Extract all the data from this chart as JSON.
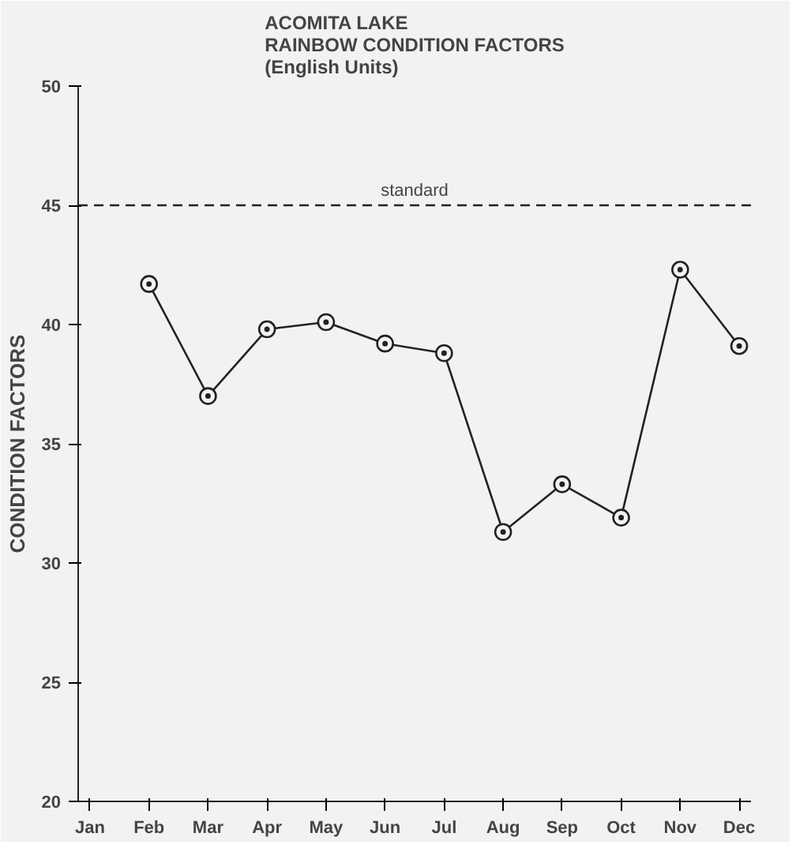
{
  "chart_data": {
    "type": "line",
    "title": "ACOMITA LAKE\nRAINBOW CONDITION FACTORS",
    "subtitle": "(English Units)",
    "ylabel": "CONDITION FACTORS",
    "categories": [
      "Jan",
      "Feb",
      "Mar",
      "Apr",
      "May",
      "Jun",
      "Jul",
      "Aug",
      "Sep",
      "Oct",
      "Nov",
      "Dec"
    ],
    "series": [
      {
        "color": "#222222",
        "values": [
          null,
          41.7,
          37.0,
          39.8,
          40.1,
          39.2,
          38.8,
          31.3,
          33.3,
          31.9,
          42.3,
          39.1
        ]
      }
    ],
    "ylim": [
      20,
      50
    ],
    "yticks": [
      20,
      25,
      30,
      35,
      40,
      45,
      50
    ],
    "ref_lines": [
      {
        "axis": "y",
        "value": 45,
        "label": "standard",
        "color": "#222222",
        "line_style": "dashed"
      }
    ],
    "marker": "circle",
    "line_style": "solid",
    "grid": false
  }
}
